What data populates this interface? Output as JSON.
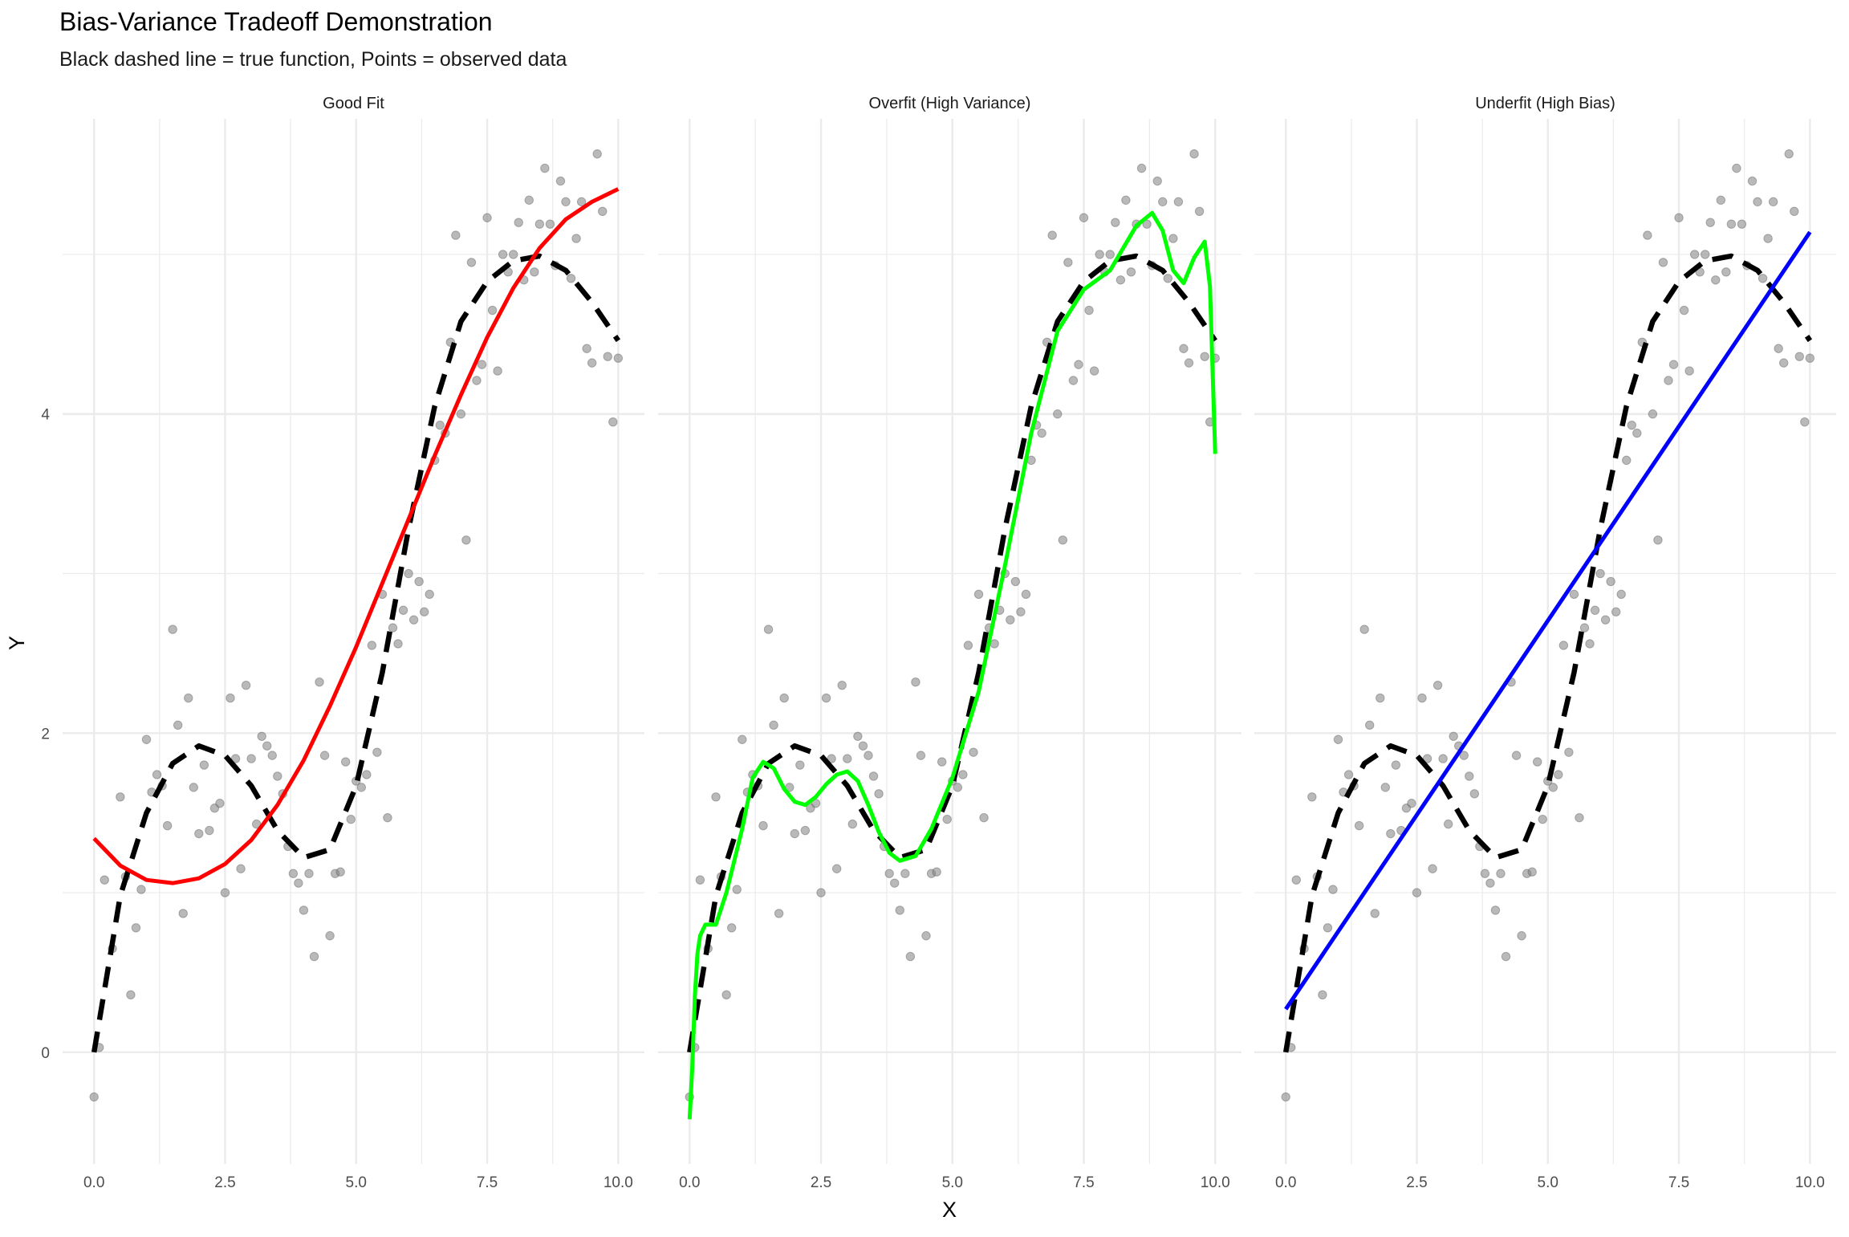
{
  "chart_data": {
    "type": "scatter",
    "title": "Bias-Variance Tradeoff Demonstration",
    "subtitle": "Black dashed line = true function, Points = observed data",
    "xlabel": "X",
    "ylabel": "Y",
    "xlim": [
      -0.6,
      10.5
    ],
    "ylim": [
      -0.7,
      5.85
    ],
    "x_ticks": [
      0,
      2.5,
      5,
      7.5,
      10
    ],
    "x_tick_labels": [
      "0.0",
      "2.5",
      "5.0",
      "7.5",
      "10.0"
    ],
    "y_ticks": [
      0,
      2,
      4
    ],
    "y_tick_labels": [
      "0",
      "2",
      "4"
    ],
    "grid": true,
    "legend": "none",
    "colors": {
      "points": "#7f7f7f",
      "true_function": "#000000",
      "good_fit": "#ff0000",
      "overfit": "#00ff00",
      "underfit": "#0000ff",
      "grid": "#ebebeb"
    },
    "facets": [
      {
        "label": "Good Fit",
        "fit_color": "#ff0000"
      },
      {
        "label": "Overfit (High Variance)",
        "fit_color": "#00ff00"
      },
      {
        "label": "Underfit (High Bias)",
        "fit_color": "#0000ff"
      }
    ],
    "observed_points": {
      "x": [
        0,
        0.1,
        0.2,
        0.35,
        0.5,
        0.6,
        0.7,
        0.8,
        0.9,
        1.0,
        1.1,
        1.2,
        1.3,
        1.4,
        1.5,
        1.6,
        1.7,
        1.8,
        1.9,
        2.0,
        2.1,
        2.2,
        2.3,
        2.4,
        2.5,
        2.6,
        2.7,
        2.8,
        2.9,
        3.0,
        3.1,
        3.2,
        3.3,
        3.4,
        3.5,
        3.6,
        3.7,
        3.8,
        3.9,
        4.0,
        4.1,
        4.2,
        4.3,
        4.4,
        4.5,
        4.6,
        4.7,
        4.8,
        4.9,
        5.0,
        5.1,
        5.2,
        5.3,
        5.4,
        5.5,
        5.6,
        5.7,
        5.8,
        5.9,
        6.0,
        6.1,
        6.2,
        6.3,
        6.4,
        6.5,
        6.6,
        6.7,
        6.8,
        6.9,
        7.0,
        7.1,
        7.2,
        7.3,
        7.4,
        7.5,
        7.6,
        7.7,
        7.8,
        7.9,
        8.0,
        8.1,
        8.2,
        8.3,
        8.4,
        8.5,
        8.6,
        8.7,
        8.8,
        8.9,
        9.0,
        9.1,
        9.2,
        9.3,
        9.4,
        9.5,
        9.6,
        9.7,
        9.8,
        9.9,
        10.0
      ],
      "y": [
        -0.28,
        0.03,
        1.08,
        0.65,
        1.6,
        1.1,
        0.36,
        0.78,
        1.02,
        1.96,
        1.63,
        1.74,
        1.67,
        1.42,
        2.65,
        2.05,
        0.87,
        2.22,
        1.66,
        1.37,
        1.8,
        1.39,
        1.53,
        1.56,
        1.0,
        2.22,
        1.84,
        1.15,
        2.3,
        1.84,
        1.43,
        1.98,
        1.92,
        1.86,
        1.73,
        1.62,
        1.29,
        1.12,
        1.06,
        0.89,
        1.12,
        0.6,
        2.32,
        1.86,
        0.73,
        1.12,
        1.13,
        1.82,
        1.46,
        1.7,
        1.66,
        1.74,
        2.55,
        1.88,
        2.87,
        1.47,
        2.66,
        2.56,
        2.77,
        3.0,
        2.71,
        2.95,
        2.76,
        2.87,
        3.71,
        3.93,
        3.88,
        4.45,
        5.12,
        4.0,
        3.21,
        4.95,
        4.21,
        4.31,
        5.23,
        4.65,
        4.27,
        5.0,
        4.89,
        5.0,
        5.2,
        4.84,
        5.34,
        4.89,
        5.19,
        5.54,
        5.19,
        4.93,
        5.46,
        5.33,
        4.85,
        5.1,
        5.33,
        4.41,
        4.32,
        5.63,
        5.27,
        4.36,
        3.95,
        4.35
      ]
    },
    "true_function": {
      "x": [
        0,
        0.5,
        1.0,
        1.5,
        2.0,
        2.5,
        3.0,
        3.5,
        4.0,
        4.5,
        5.0,
        5.5,
        6.0,
        6.5,
        7.0,
        7.5,
        8.0,
        8.5,
        9.0,
        9.5,
        10.0
      ],
      "y": [
        0.0,
        0.98,
        1.5,
        1.81,
        1.92,
        1.86,
        1.67,
        1.39,
        1.22,
        1.27,
        1.67,
        2.38,
        3.28,
        4.05,
        4.58,
        4.83,
        4.96,
        4.99,
        4.9,
        4.7,
        4.46
      ]
    },
    "good_fit": {
      "x": [
        0,
        0.5,
        1.0,
        1.5,
        2.0,
        2.5,
        3.0,
        3.5,
        4.0,
        4.5,
        5.0,
        5.5,
        6.0,
        6.5,
        7.0,
        7.5,
        8.0,
        8.5,
        9.0,
        9.5,
        10.0
      ],
      "y": [
        1.34,
        1.17,
        1.08,
        1.06,
        1.09,
        1.18,
        1.33,
        1.55,
        1.83,
        2.17,
        2.54,
        2.94,
        3.34,
        3.74,
        4.12,
        4.48,
        4.79,
        5.04,
        5.22,
        5.33,
        5.41
      ]
    },
    "overfit": {
      "x": [
        0,
        0.05,
        0.1,
        0.15,
        0.2,
        0.3,
        0.5,
        0.7,
        1.0,
        1.2,
        1.4,
        1.6,
        1.8,
        2.0,
        2.2,
        2.4,
        2.6,
        2.8,
        3.0,
        3.2,
        3.4,
        3.6,
        3.8,
        4.0,
        4.3,
        4.6,
        5.0,
        5.5,
        6.0,
        6.5,
        7.0,
        7.5,
        8.0,
        8.5,
        8.8,
        9.0,
        9.2,
        9.4,
        9.6,
        9.8,
        9.9,
        10.0
      ],
      "y": [
        -0.42,
        -0.1,
        0.35,
        0.62,
        0.73,
        0.8,
        0.8,
        1.0,
        1.4,
        1.72,
        1.82,
        1.78,
        1.65,
        1.57,
        1.55,
        1.6,
        1.68,
        1.74,
        1.76,
        1.7,
        1.55,
        1.38,
        1.25,
        1.2,
        1.23,
        1.4,
        1.72,
        2.26,
        3.05,
        3.88,
        4.52,
        4.78,
        4.9,
        5.18,
        5.26,
        5.15,
        4.9,
        4.82,
        4.98,
        5.08,
        4.8,
        3.75
      ]
    },
    "underfit": {
      "x": [
        0,
        10.0
      ],
      "y": [
        0.27,
        5.14
      ]
    }
  }
}
